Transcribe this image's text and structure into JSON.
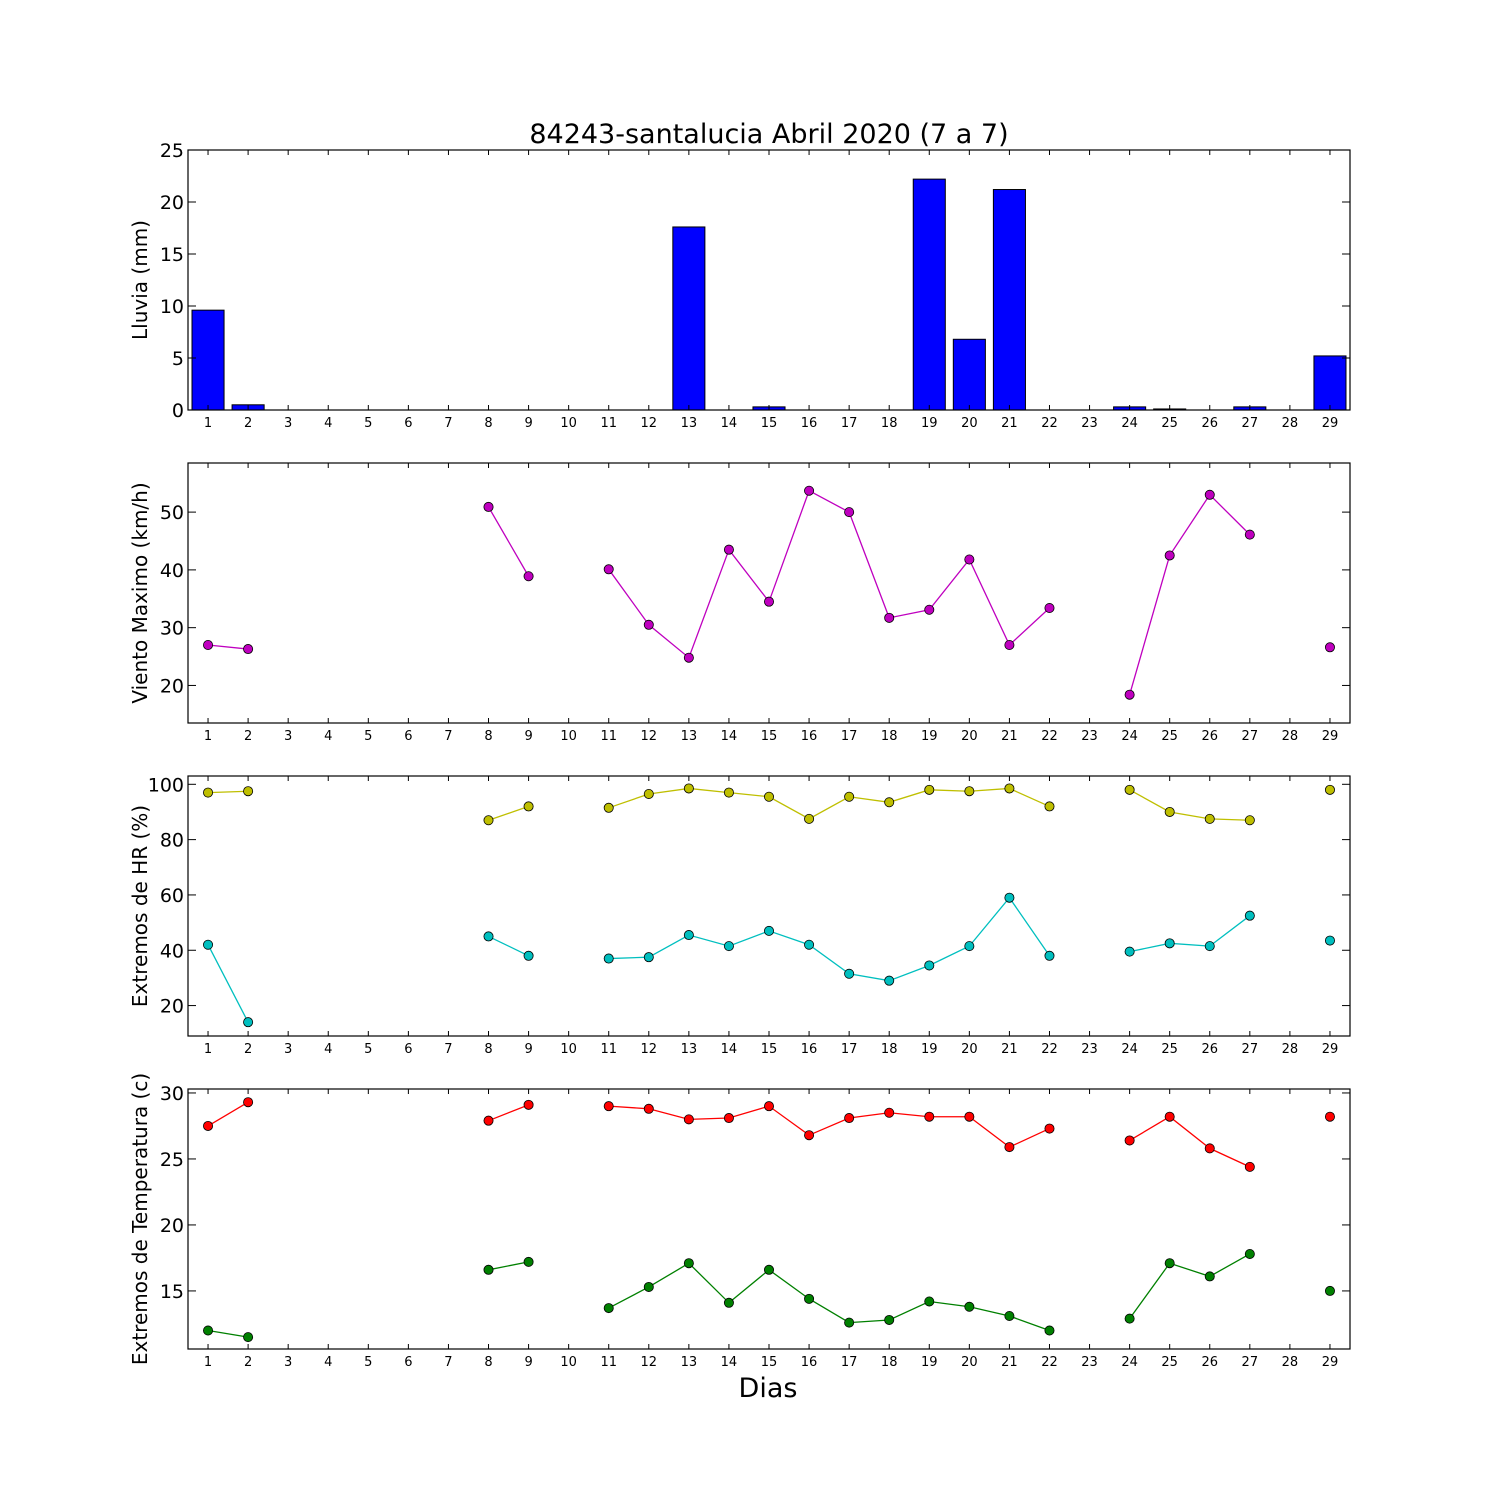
{
  "figure": {
    "title": "84243-santalucia Abril 2020  (7 a 7)",
    "xlabel": "Dias"
  },
  "chart_data": [
    {
      "type": "bar",
      "ylabel": "Lluvia (mm)",
      "categories": [
        "1",
        "2",
        "3",
        "4",
        "5",
        "6",
        "7",
        "8",
        "9",
        "10",
        "11",
        "12",
        "13",
        "14",
        "15",
        "16",
        "17",
        "18",
        "19",
        "20",
        "21",
        "22",
        "23",
        "24",
        "25",
        "26",
        "27",
        "28",
        "29"
      ],
      "values": [
        9.6,
        0.5,
        0,
        0,
        0,
        0,
        0,
        0,
        0,
        0,
        0,
        0,
        17.6,
        0,
        0.3,
        0,
        0,
        0,
        22.2,
        6.8,
        21.2,
        0,
        0,
        0.3,
        0.1,
        0,
        0.3,
        0,
        5.2
      ],
      "ylim": [
        0,
        25
      ],
      "yticks": [
        0,
        5,
        10,
        15,
        20,
        25
      ],
      "colors": {
        "fill": "#0000ff",
        "stroke": "#000000"
      }
    },
    {
      "type": "line",
      "ylabel": "Viento Maximo (km/h)",
      "categories": [
        "1",
        "2",
        "3",
        "4",
        "5",
        "6",
        "7",
        "8",
        "9",
        "10",
        "11",
        "12",
        "13",
        "14",
        "15",
        "16",
        "17",
        "18",
        "19",
        "20",
        "21",
        "22",
        "23",
        "24",
        "25",
        "26",
        "27",
        "28",
        "29"
      ],
      "series": [
        {
          "values": [
            27.0,
            26.3,
            null,
            null,
            null,
            null,
            null,
            50.9,
            38.9,
            null,
            40.1,
            30.5,
            24.8,
            43.5,
            34.5,
            53.7,
            50.0,
            31.7,
            33.1,
            41.8,
            27.0,
            33.4,
            null,
            18.4,
            42.5,
            53.0,
            46.1,
            null,
            26.6
          ],
          "color": "#bf00bf"
        }
      ],
      "ylim": [
        13.5,
        58.5
      ],
      "yticks": [
        20,
        30,
        40,
        50
      ]
    },
    {
      "type": "line",
      "ylabel": "Extremos de HR (%)",
      "categories": [
        "1",
        "2",
        "3",
        "4",
        "5",
        "6",
        "7",
        "8",
        "9",
        "10",
        "11",
        "12",
        "13",
        "14",
        "15",
        "16",
        "17",
        "18",
        "19",
        "20",
        "21",
        "22",
        "23",
        "24",
        "25",
        "26",
        "27",
        "28",
        "29"
      ],
      "series": [
        {
          "values": [
            97,
            97.5,
            null,
            null,
            null,
            null,
            null,
            87,
            92,
            null,
            91.5,
            96.5,
            98.5,
            97,
            95.5,
            87.5,
            95.5,
            93.5,
            98,
            97.5,
            98.5,
            92,
            null,
            98,
            90,
            87.5,
            87,
            null,
            98
          ],
          "color": "#bfbf00"
        },
        {
          "values": [
            42,
            14,
            null,
            null,
            null,
            null,
            null,
            45,
            38,
            null,
            37,
            37.5,
            45.5,
            41.5,
            47,
            42,
            31.5,
            29,
            34.5,
            41.5,
            59,
            38,
            null,
            39.5,
            42.5,
            41.5,
            52.5,
            null,
            43.5
          ],
          "color": "#00bfbf"
        }
      ],
      "ylim": [
        9,
        103
      ],
      "yticks": [
        20,
        40,
        60,
        80,
        100
      ]
    },
    {
      "type": "line",
      "ylabel": "Extremos de Temperatura (c)",
      "categories": [
        "1",
        "2",
        "3",
        "4",
        "5",
        "6",
        "7",
        "8",
        "9",
        "10",
        "11",
        "12",
        "13",
        "14",
        "15",
        "16",
        "17",
        "18",
        "19",
        "20",
        "21",
        "22",
        "23",
        "24",
        "25",
        "26",
        "27",
        "28",
        "29"
      ],
      "series": [
        {
          "values": [
            27.5,
            29.3,
            null,
            null,
            null,
            null,
            null,
            27.9,
            29.1,
            null,
            29.0,
            28.8,
            28.0,
            28.1,
            29.0,
            26.8,
            28.1,
            28.5,
            28.2,
            28.2,
            25.9,
            27.3,
            null,
            26.4,
            28.2,
            25.8,
            24.4,
            null,
            28.2
          ],
          "color": "#ff0000"
        },
        {
          "values": [
            12.0,
            11.5,
            null,
            null,
            null,
            null,
            null,
            16.6,
            17.2,
            null,
            13.7,
            15.3,
            17.1,
            14.1,
            16.6,
            14.4,
            12.6,
            12.8,
            14.2,
            13.8,
            13.1,
            12.0,
            null,
            12.9,
            17.1,
            16.1,
            17.8,
            null,
            15.0
          ],
          "color": "#008000"
        }
      ],
      "ylim": [
        10.6,
        30.3
      ],
      "yticks": [
        15,
        20,
        25,
        30
      ]
    }
  ]
}
